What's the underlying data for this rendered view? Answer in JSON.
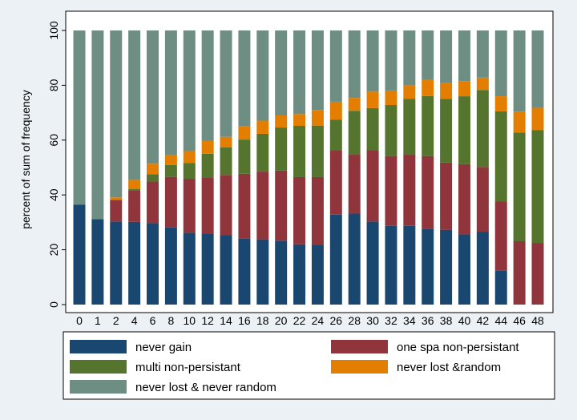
{
  "chart_data": {
    "type": "bar",
    "stacked": true,
    "ylabel": "percent of sum of frequency",
    "ylim": [
      0,
      100
    ],
    "yticks": [
      0,
      20,
      40,
      60,
      80,
      100
    ],
    "categories": [
      "0",
      "1",
      "2",
      "4",
      "6",
      "8",
      "10",
      "12",
      "14",
      "16",
      "18",
      "20",
      "22",
      "24",
      "26",
      "28",
      "30",
      "32",
      "34",
      "36",
      "38",
      "40",
      "42",
      "44",
      "46",
      "48"
    ],
    "series": [
      {
        "name": "never gain",
        "color": "#1a476f",
        "values": [
          36.5,
          31.2,
          30.3,
          30.2,
          29.7,
          28.1,
          26.2,
          25.9,
          25.3,
          24.2,
          23.8,
          23.3,
          22.0,
          21.9,
          32.8,
          33.2,
          30.3,
          28.7,
          28.7,
          27.6,
          27.3,
          25.6,
          26.6,
          12.5,
          0,
          0
        ]
      },
      {
        "name": "one spa non-persistant",
        "color": "#90353b",
        "values": [
          0,
          0,
          7.9,
          11.5,
          15.2,
          18.5,
          19.7,
          20.3,
          22.0,
          23.5,
          24.7,
          25.6,
          24.5,
          24.6,
          23.5,
          21.6,
          26.0,
          25.5,
          26.1,
          26.6,
          24.5,
          25.6,
          23.6,
          25.2,
          23.1,
          22.5
        ]
      },
      {
        "name": "multi non-persistant",
        "color": "#55752f",
        "values": [
          0,
          0,
          0,
          0.4,
          2.6,
          4.3,
          5.8,
          8.8,
          10.1,
          12.5,
          13.8,
          15.7,
          18.7,
          18.8,
          11.2,
          15.9,
          15.4,
          18.6,
          20.2,
          21.9,
          23.3,
          24.8,
          28.1,
          32.8,
          39.7,
          41.1
        ]
      },
      {
        "name": "never lost &random",
        "color": "#e37e00",
        "values": [
          0,
          0,
          0.9,
          3.4,
          3.9,
          3.6,
          4.3,
          4.8,
          3.8,
          4.8,
          4.8,
          4.4,
          4.3,
          5.7,
          6.5,
          4.7,
          6.0,
          5.3,
          5.0,
          5.8,
          5.7,
          5.5,
          4.5,
          5.5,
          7.6,
          8.2
        ]
      },
      {
        "name": "never lost & never random",
        "color": "#6e8e84",
        "values": [
          63.5,
          68.8,
          60.9,
          54.5,
          48.6,
          45.5,
          44.0,
          40.2,
          38.8,
          35.0,
          32.9,
          31.0,
          30.5,
          29.0,
          26.0,
          24.6,
          22.3,
          21.9,
          20.0,
          18.1,
          19.2,
          18.5,
          17.2,
          24.0,
          29.6,
          28.2
        ]
      }
    ],
    "legend_position": "bottom",
    "grid": false
  }
}
